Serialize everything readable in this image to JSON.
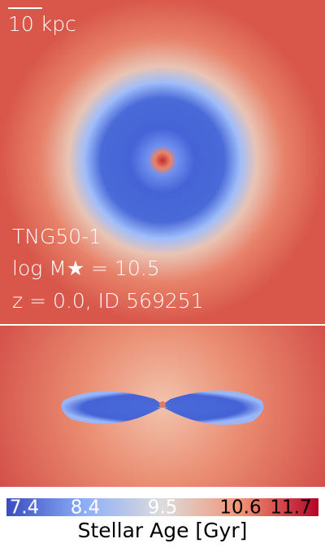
{
  "scale_bar": {
    "label": "10 kpc"
  },
  "overlay": {
    "lines": [
      "TNG50-1",
      "log M★ = 10.5",
      "z = 0.0, ID 569251"
    ]
  },
  "colorbar": {
    "ticks": [
      "7.4",
      "8.4",
      "9.5",
      "10.6",
      "11.7"
    ],
    "label": "Stellar Age [Gyr]"
  }
}
